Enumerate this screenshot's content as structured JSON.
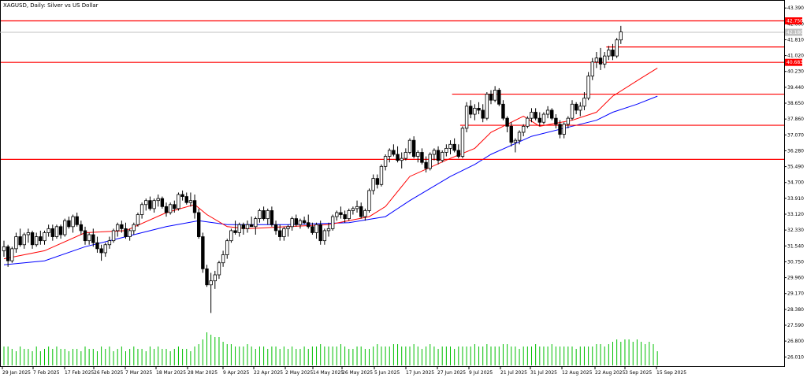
{
  "chart_data": {
    "type": "candlestick",
    "title": "XAGUSD, Daily:  Silver vs US Dollar",
    "xlabel": "",
    "ylabel": "",
    "ylim": [
      25.55,
      43.75
    ],
    "y_ticks": [
      "43.390",
      "42.600",
      "41.810",
      "41.020",
      "40.230",
      "39.440",
      "38.650",
      "37.860",
      "37.070",
      "36.280",
      "35.490",
      "34.700",
      "33.910",
      "33.120",
      "32.330",
      "31.540",
      "30.750",
      "29.960",
      "29.170",
      "28.380",
      "27.590",
      "26.800",
      "26.010"
    ],
    "x_ticks": [
      "29 Jan 2025",
      "7 Feb 2025",
      "17 Feb 2025",
      "26 Feb 2025",
      "7 Mar 2025",
      "18 Mar 2025",
      "28 Mar 2025",
      "9 Apr 2025",
      "22 Apr 2025",
      "2 May 2025",
      "14 May 2025",
      "26 May 2025",
      "5 Jun 2025",
      "17 Jun 2025",
      "27 Jun 2025",
      "9 Jul 2025",
      "21 Jul 2025",
      "31 Jul 2025",
      "12 Aug 2025",
      "22 Aug 2025",
      "3 Sep 2025",
      "15 Sep 2025"
    ],
    "price_labels": [
      {
        "value": 42.75,
        "text": "42.750",
        "color": "#ff0000"
      },
      {
        "value": 42.18,
        "text": "42.180",
        "color": "#c0c0c0"
      },
      {
        "value": 40.683,
        "text": "40.683",
        "color": "#ff0000"
      }
    ],
    "horizontal_levels": [
      {
        "value": 42.75,
        "span": "full"
      },
      {
        "value": 40.683,
        "span": "full"
      },
      {
        "value": 41.45,
        "span": "from-bar",
        "from_bar": 149
      },
      {
        "value": 39.1,
        "span": "from-bar",
        "from_bar": 111
      },
      {
        "value": 37.55,
        "span": "from-bar",
        "from_bar": 113
      },
      {
        "value": 35.85,
        "span": "full"
      }
    ],
    "bid_line": 42.18,
    "ma_fast_color": "#ff0000",
    "ma_slow_color": "#0000ff",
    "volume_color": "#00c000",
    "candles": [
      [
        31.3,
        31.8,
        31.0,
        31.5
      ],
      [
        31.5,
        31.6,
        30.5,
        30.8
      ],
      [
        30.8,
        31.5,
        30.7,
        31.4
      ],
      [
        31.4,
        32.2,
        31.2,
        32.0
      ],
      [
        32.0,
        32.4,
        31.5,
        31.6
      ],
      [
        31.6,
        32.2,
        31.4,
        32.1
      ],
      [
        32.1,
        32.4,
        31.7,
        32.2
      ],
      [
        32.2,
        32.3,
        31.4,
        31.6
      ],
      [
        31.6,
        32.2,
        31.5,
        32.0
      ],
      [
        32.0,
        32.3,
        31.6,
        31.8
      ],
      [
        31.8,
        32.3,
        31.6,
        32.2
      ],
      [
        32.2,
        32.6,
        32.0,
        32.4
      ],
      [
        32.4,
        32.6,
        31.8,
        32.0
      ],
      [
        32.0,
        32.6,
        31.9,
        32.5
      ],
      [
        32.5,
        32.6,
        31.9,
        32.1
      ],
      [
        32.1,
        32.9,
        32.0,
        32.8
      ],
      [
        32.8,
        33.0,
        32.4,
        32.5
      ],
      [
        32.5,
        33.1,
        32.2,
        33.0
      ],
      [
        33.0,
        33.2,
        32.5,
        32.6
      ],
      [
        32.6,
        32.8,
        32.1,
        32.3
      ],
      [
        32.3,
        32.5,
        31.6,
        31.8
      ],
      [
        31.8,
        32.2,
        31.6,
        32.1
      ],
      [
        32.1,
        32.4,
        31.5,
        31.7
      ],
      [
        31.7,
        32.0,
        31.2,
        31.4
      ],
      [
        31.4,
        31.6,
        30.8,
        31.2
      ],
      [
        31.2,
        31.7,
        31.0,
        31.6
      ],
      [
        31.6,
        32.0,
        31.4,
        31.8
      ],
      [
        31.8,
        32.4,
        31.7,
        32.3
      ],
      [
        32.3,
        32.7,
        32.0,
        32.6
      ],
      [
        32.6,
        32.8,
        32.2,
        32.4
      ],
      [
        32.4,
        32.7,
        31.9,
        32.0
      ],
      [
        32.0,
        32.4,
        31.8,
        32.3
      ],
      [
        32.3,
        32.7,
        32.1,
        32.6
      ],
      [
        32.6,
        33.2,
        32.5,
        33.1
      ],
      [
        33.1,
        33.7,
        32.9,
        33.6
      ],
      [
        33.6,
        33.9,
        33.3,
        33.8
      ],
      [
        33.8,
        34.0,
        33.3,
        33.4
      ],
      [
        33.4,
        33.9,
        33.2,
        33.8
      ],
      [
        33.8,
        34.1,
        33.5,
        33.9
      ],
      [
        33.9,
        34.0,
        33.4,
        33.5
      ],
      [
        33.5,
        33.7,
        33.0,
        33.2
      ],
      [
        33.2,
        33.7,
        33.1,
        33.6
      ],
      [
        33.6,
        33.8,
        33.2,
        33.4
      ],
      [
        33.4,
        34.2,
        33.3,
        34.1
      ],
      [
        34.1,
        34.3,
        33.8,
        34.0
      ],
      [
        34.0,
        34.2,
        33.6,
        33.7
      ],
      [
        33.7,
        34.2,
        33.5,
        33.8
      ],
      [
        33.8,
        34.1,
        32.9,
        33.2
      ],
      [
        33.2,
        33.4,
        31.9,
        32.0
      ],
      [
        32.0,
        32.2,
        30.2,
        30.4
      ],
      [
        30.4,
        30.6,
        29.5,
        29.6
      ],
      [
        29.6,
        30.2,
        28.2,
        29.8
      ],
      [
        29.8,
        30.3,
        29.4,
        30.1
      ],
      [
        30.1,
        30.8,
        29.9,
        30.7
      ],
      [
        30.7,
        31.3,
        30.5,
        31.1
      ],
      [
        31.1,
        31.9,
        30.9,
        31.8
      ],
      [
        31.8,
        32.4,
        31.7,
        32.3
      ],
      [
        32.3,
        32.8,
        32.1,
        32.2
      ],
      [
        32.2,
        32.7,
        32.0,
        32.6
      ],
      [
        32.6,
        32.7,
        32.1,
        32.4
      ],
      [
        32.4,
        32.8,
        32.2,
        32.6
      ],
      [
        32.6,
        33.0,
        32.5,
        32.5
      ],
      [
        32.5,
        33.0,
        32.1,
        32.9
      ],
      [
        32.9,
        33.4,
        32.7,
        33.3
      ],
      [
        33.3,
        33.5,
        32.8,
        32.9
      ],
      [
        32.9,
        33.4,
        32.6,
        33.3
      ],
      [
        33.3,
        33.5,
        32.5,
        32.6
      ],
      [
        32.6,
        32.8,
        32.1,
        32.3
      ],
      [
        32.3,
        32.6,
        31.8,
        32.0
      ],
      [
        32.0,
        32.5,
        31.8,
        32.4
      ],
      [
        32.4,
        32.6,
        32.0,
        32.5
      ],
      [
        32.5,
        33.0,
        32.3,
        32.9
      ],
      [
        32.9,
        33.1,
        32.5,
        32.6
      ],
      [
        32.6,
        32.9,
        32.4,
        32.8
      ],
      [
        32.8,
        33.0,
        32.6,
        32.7
      ],
      [
        32.7,
        33.1,
        32.4,
        32.5
      ],
      [
        32.5,
        32.7,
        32.1,
        32.2
      ],
      [
        32.2,
        32.7,
        31.9,
        32.6
      ],
      [
        32.6,
        32.8,
        31.6,
        31.8
      ],
      [
        31.8,
        32.4,
        31.6,
        32.3
      ],
      [
        32.3,
        32.7,
        32.0,
        32.4
      ],
      [
        32.4,
        33.1,
        32.3,
        33.0
      ],
      [
        33.0,
        33.3,
        32.8,
        33.2
      ],
      [
        33.2,
        33.5,
        32.9,
        33.1
      ],
      [
        33.1,
        33.3,
        32.7,
        32.9
      ],
      [
        32.9,
        33.4,
        32.8,
        33.3
      ],
      [
        33.3,
        33.5,
        33.1,
        33.4
      ],
      [
        33.4,
        33.8,
        33.2,
        33.5
      ],
      [
        33.5,
        33.7,
        32.9,
        33.0
      ],
      [
        33.0,
        33.4,
        32.8,
        33.3
      ],
      [
        33.3,
        34.4,
        33.2,
        34.3
      ],
      [
        34.3,
        35.1,
        34.1,
        34.9
      ],
      [
        34.9,
        35.1,
        34.4,
        34.6
      ],
      [
        34.6,
        35.6,
        34.5,
        35.5
      ],
      [
        35.5,
        36.1,
        35.3,
        36.0
      ],
      [
        36.0,
        36.4,
        35.7,
        36.3
      ],
      [
        36.3,
        36.6,
        36.0,
        36.1
      ],
      [
        36.1,
        36.5,
        35.7,
        35.8
      ],
      [
        35.8,
        36.2,
        35.4,
        35.9
      ],
      [
        35.9,
        36.4,
        35.8,
        36.2
      ],
      [
        36.2,
        36.9,
        36.1,
        36.8
      ],
      [
        36.8,
        37.0,
        35.9,
        36.0
      ],
      [
        36.0,
        36.3,
        35.7,
        36.2
      ],
      [
        36.2,
        36.4,
        35.6,
        35.7
      ],
      [
        35.7,
        36.0,
        35.2,
        35.4
      ],
      [
        35.4,
        36.2,
        35.3,
        36.1
      ],
      [
        36.1,
        36.4,
        35.8,
        36.3
      ],
      [
        36.3,
        36.5,
        35.6,
        35.8
      ],
      [
        35.8,
        36.3,
        35.7,
        36.2
      ],
      [
        36.2,
        36.6,
        36.0,
        36.4
      ],
      [
        36.4,
        36.8,
        36.1,
        36.6
      ],
      [
        36.6,
        36.9,
        36.2,
        36.3
      ],
      [
        36.3,
        36.6,
        35.9,
        36.0
      ],
      [
        36.0,
        37.5,
        35.9,
        37.4
      ],
      [
        37.4,
        38.7,
        37.2,
        38.5
      ],
      [
        38.5,
        38.8,
        37.9,
        38.1
      ],
      [
        38.1,
        38.6,
        37.8,
        38.4
      ],
      [
        38.4,
        38.7,
        38.1,
        38.3
      ],
      [
        38.3,
        38.6,
        37.7,
        37.9
      ],
      [
        37.9,
        39.2,
        37.8,
        39.1
      ],
      [
        39.1,
        39.3,
        38.6,
        38.8
      ],
      [
        38.8,
        39.5,
        38.7,
        39.3
      ],
      [
        39.3,
        39.4,
        38.5,
        38.6
      ],
      [
        38.6,
        38.8,
        37.8,
        37.9
      ],
      [
        37.9,
        38.0,
        37.2,
        37.5
      ],
      [
        37.5,
        37.7,
        36.5,
        36.7
      ],
      [
        36.7,
        36.9,
        36.2,
        36.8
      ],
      [
        36.8,
        37.3,
        36.6,
        37.2
      ],
      [
        37.2,
        37.6,
        37.0,
        37.5
      ],
      [
        37.5,
        38.0,
        37.4,
        37.9
      ],
      [
        37.9,
        38.4,
        37.7,
        38.2
      ],
      [
        38.2,
        38.4,
        37.8,
        37.9
      ],
      [
        37.9,
        38.2,
        37.5,
        37.7
      ],
      [
        37.7,
        38.2,
        37.6,
        38.1
      ],
      [
        38.1,
        38.5,
        37.9,
        38.3
      ],
      [
        38.3,
        38.4,
        37.8,
        37.9
      ],
      [
        37.9,
        38.1,
        37.4,
        37.6
      ],
      [
        37.6,
        37.8,
        36.9,
        37.1
      ],
      [
        37.1,
        37.7,
        36.9,
        37.6
      ],
      [
        37.6,
        38.0,
        37.4,
        37.9
      ],
      [
        37.9,
        38.8,
        37.8,
        38.6
      ],
      [
        38.6,
        38.7,
        38.1,
        38.3
      ],
      [
        38.3,
        38.7,
        38.0,
        38.5
      ],
      [
        38.5,
        39.2,
        38.3,
        38.9
      ],
      [
        38.9,
        40.2,
        38.8,
        40.0
      ],
      [
        40.0,
        40.9,
        39.8,
        40.7
      ],
      [
        40.7,
        41.2,
        40.4,
        40.9
      ],
      [
        40.9,
        41.4,
        40.3,
        40.6
      ],
      [
        40.6,
        41.2,
        40.4,
        41.0
      ],
      [
        41.0,
        41.5,
        40.8,
        41.3
      ],
      [
        41.3,
        41.6,
        40.8,
        41.0
      ],
      [
        41.0,
        41.9,
        40.9,
        41.8
      ],
      [
        41.8,
        42.5,
        41.6,
        42.2
      ]
    ],
    "ma_fast": [
      [
        0,
        30.9
      ],
      [
        10,
        31.3
      ],
      [
        20,
        32.2
      ],
      [
        30,
        32.3
      ],
      [
        40,
        33.2
      ],
      [
        47,
        33.6
      ],
      [
        50,
        33.1
      ],
      [
        55,
        32.5
      ],
      [
        60,
        32.4
      ],
      [
        70,
        32.5
      ],
      [
        80,
        32.6
      ],
      [
        90,
        33.0
      ],
      [
        94,
        33.5
      ],
      [
        100,
        35.0
      ],
      [
        110,
        35.9
      ],
      [
        116,
        36.4
      ],
      [
        120,
        37.2
      ],
      [
        128,
        38.0
      ],
      [
        132,
        37.5
      ],
      [
        140,
        37.8
      ],
      [
        146,
        38.2
      ],
      [
        150,
        39.0
      ],
      [
        157,
        39.9
      ],
      [
        161,
        40.4
      ]
    ],
    "ma_slow": [
      [
        0,
        30.6
      ],
      [
        10,
        30.8
      ],
      [
        20,
        31.5
      ],
      [
        30,
        32.0
      ],
      [
        40,
        32.5
      ],
      [
        48,
        32.8
      ],
      [
        55,
        32.6
      ],
      [
        70,
        32.6
      ],
      [
        85,
        32.7
      ],
      [
        94,
        33.0
      ],
      [
        100,
        33.8
      ],
      [
        110,
        35.0
      ],
      [
        116,
        35.6
      ],
      [
        120,
        36.1
      ],
      [
        130,
        37.0
      ],
      [
        140,
        37.5
      ],
      [
        146,
        37.8
      ],
      [
        150,
        38.2
      ],
      [
        156,
        38.6
      ],
      [
        161,
        39.0
      ]
    ],
    "volume": [
      8,
      8,
      7,
      6,
      8,
      7,
      7,
      6,
      8,
      6,
      7,
      8,
      7,
      8,
      7,
      7,
      6,
      7,
      7,
      6,
      8,
      7,
      7,
      6,
      8,
      7,
      8,
      6,
      7,
      8,
      6,
      7,
      8,
      7,
      7,
      6,
      8,
      7,
      8,
      7,
      7,
      6,
      7,
      8,
      7,
      7,
      6,
      8,
      9,
      11,
      14,
      13,
      12,
      12,
      10,
      9,
      9,
      8,
      8,
      8,
      9,
      8,
      7,
      8,
      8,
      7,
      8,
      8,
      7,
      8,
      7,
      8,
      7,
      7,
      8,
      7,
      8,
      8,
      9,
      8,
      8,
      8,
      8,
      9,
      8,
      7,
      7,
      8,
      8,
      7,
      7,
      8,
      9,
      8,
      8,
      8,
      9,
      9,
      8,
      8,
      8,
      9,
      8,
      7,
      8,
      9,
      8,
      7,
      8,
      8,
      8,
      7,
      8,
      8,
      8,
      8,
      9,
      8,
      8,
      9,
      8,
      8,
      8,
      9,
      9,
      8,
      8,
      7,
      8,
      8,
      8,
      9,
      8,
      8,
      8,
      9,
      8,
      8,
      8,
      8,
      8,
      7,
      8,
      8,
      8,
      8,
      9,
      9,
      8,
      9,
      10,
      11,
      10,
      11,
      11,
      10,
      11,
      10,
      9,
      10,
      9,
      6
    ]
  }
}
